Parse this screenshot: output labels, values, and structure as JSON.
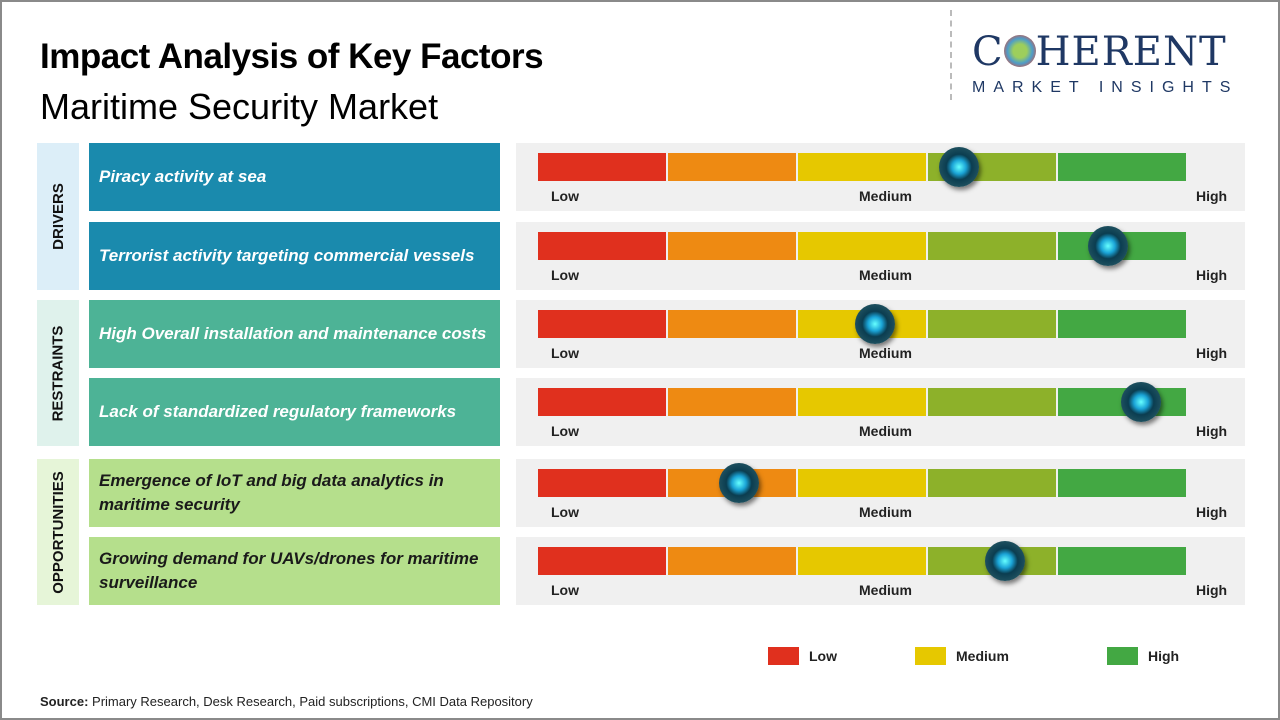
{
  "title": "Impact Analysis of Key Factors",
  "subtitle": "Maritime Security Market",
  "logo": {
    "line1": "COHERENT",
    "line2": "MARKET INSIGHTS"
  },
  "colors": {
    "segments": [
      "#e0301e",
      "#ee8a12",
      "#e6c800",
      "#8db12a",
      "#43a843"
    ],
    "drivers": "#1a8aad",
    "restraints": "#4db396",
    "opportunities": "#b5df8c"
  },
  "chart_data": {
    "type": "gauge",
    "scale": [
      "Low",
      "Medium",
      "High"
    ],
    "groups": [
      {
        "name": "DRIVERS",
        "factors": [
          {
            "label": "Piracy activity at sea",
            "value": 0.65
          },
          {
            "label": "Terrorist  activity targeting  commercial vessels",
            "value": 0.88
          }
        ]
      },
      {
        "name": "RESTRAINTS",
        "factors": [
          {
            "label": "High Overall installation  and maintenance costs",
            "value": 0.52
          },
          {
            "label": "Lack of standardized  regulatory  frameworks",
            "value": 0.93
          }
        ]
      },
      {
        "name": "OPPORTUNITIES",
        "factors": [
          {
            "label": "Emergence  of IoT and big data analytics  in maritime security",
            "value": 0.31
          },
          {
            "label": "Growing demand for UAVs/drones  for maritime surveillance",
            "value": 0.72
          }
        ]
      }
    ],
    "legend": [
      {
        "label": "Low",
        "color": "#e0301e"
      },
      {
        "label": "Medium",
        "color": "#e6c800"
      },
      {
        "label": "High",
        "color": "#43a843"
      }
    ]
  },
  "source": {
    "prefix": "Source:",
    "text": " Primary Research, Desk Research, Paid subscriptions, CMI Data Repository"
  }
}
